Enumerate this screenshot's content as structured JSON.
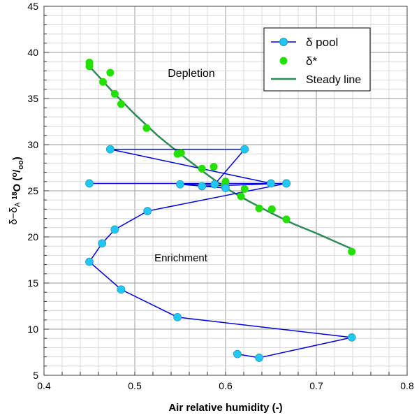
{
  "chart_data": {
    "type": "scatter",
    "xlabel": "Air relative humidity (-)",
    "ylabel_parts": {
      "a": "δ−δ",
      "sub": "A",
      "sup1": "18",
      "o": "O (",
      "sup2": "o",
      "slash": "/",
      "sub2": "oo",
      ")": ")"
    },
    "ylabel": "δ−δA 18O (o/oo)",
    "xlim": [
      0.4,
      0.8
    ],
    "ylim": [
      5,
      45
    ],
    "xticks": [
      "0.4",
      "0.5",
      "0.6",
      "0.7",
      "0.8"
    ],
    "yticks": [
      "5",
      "10",
      "15",
      "20",
      "25",
      "30",
      "35",
      "40",
      "45"
    ],
    "grid": true,
    "legend_position": "top-right",
    "annotations": [
      "Depletion",
      "Enrichment"
    ],
    "series": [
      {
        "name": "δ pool",
        "kind": "line-marker",
        "color": "#0000e0",
        "marker": "#1ec8f8",
        "x": [
          0.613,
          0.637,
          0.739,
          0.547,
          0.485,
          0.45,
          0.464,
          0.478,
          0.514,
          0.667,
          0.45,
          0.65,
          0.473,
          0.621,
          0.588,
          0.55,
          0.6,
          0.574,
          0.667
        ],
        "y": [
          7.3,
          6.9,
          9.1,
          11.3,
          14.3,
          17.3,
          19.3,
          20.8,
          22.8,
          25.8,
          25.8,
          25.8,
          29.5,
          29.5,
          25.7,
          25.7,
          25.3,
          25.5,
          25.8
        ]
      },
      {
        "name": "δ*",
        "kind": "marker",
        "color": "#22e000",
        "x": [
          0.45,
          0.45,
          0.473,
          0.465,
          0.478,
          0.485,
          0.513,
          0.547,
          0.551,
          0.574,
          0.587,
          0.6,
          0.599,
          0.617,
          0.621,
          0.637,
          0.651,
          0.667,
          0.739
        ],
        "y": [
          38.9,
          38.5,
          37.8,
          36.8,
          35.5,
          34.4,
          31.8,
          29.0,
          29.1,
          27.4,
          27.6,
          26.0,
          25.6,
          24.4,
          25.2,
          23.1,
          23.0,
          21.9,
          18.4
        ]
      },
      {
        "name": "Steady line",
        "kind": "line",
        "color": "#2e8b57",
        "x": [
          0.45,
          0.475,
          0.5,
          0.525,
          0.55,
          0.575,
          0.6,
          0.625,
          0.65,
          0.675,
          0.7,
          0.739
        ],
        "y": [
          38.5,
          35.8,
          33.3,
          31.0,
          29.0,
          27.1,
          25.3,
          23.9,
          22.6,
          21.4,
          20.4,
          18.7
        ]
      }
    ]
  }
}
